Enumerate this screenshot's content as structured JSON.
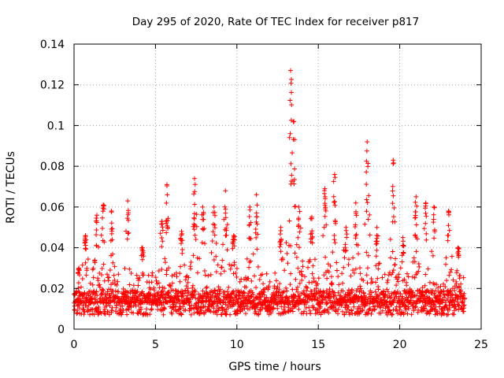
{
  "chart_data": {
    "type": "scatter",
    "title": "Day 295 of 2020, Rate Of TEC Index for receiver p817",
    "xlabel": "GPS time / hours",
    "ylabel": "ROTI / TECUs",
    "xlim": [
      0,
      25
    ],
    "ylim": [
      0,
      0.14
    ],
    "xticks": [
      0,
      5,
      10,
      15,
      20,
      25
    ],
    "xtick_labels": [
      "0",
      "5",
      "10",
      "15",
      "20",
      "25"
    ],
    "yticks": [
      0,
      0.02,
      0.04,
      0.06,
      0.08,
      0.1,
      0.12,
      0.14
    ],
    "ytick_labels": [
      "0",
      "0.02",
      "0.04",
      "0.06",
      "0.08",
      "0.1",
      "0.12",
      "0.14"
    ],
    "grid": true,
    "marker": "+",
    "series_color": "#ff0000",
    "baseline": {
      "x_range": [
        0,
        24
      ],
      "typical_y": 0.013,
      "min_y": 0.003
    },
    "peak_clusters": [
      {
        "x": 0.3,
        "max_y": 0.03
      },
      {
        "x": 0.7,
        "max_y": 0.046
      },
      {
        "x": 1.4,
        "max_y": 0.056
      },
      {
        "x": 1.8,
        "max_y": 0.061
      },
      {
        "x": 2.3,
        "max_y": 0.058
      },
      {
        "x": 3.3,
        "max_y": 0.063
      },
      {
        "x": 4.2,
        "max_y": 0.04
      },
      {
        "x": 5.4,
        "max_y": 0.053
      },
      {
        "x": 5.7,
        "max_y": 0.071
      },
      {
        "x": 6.6,
        "max_y": 0.048
      },
      {
        "x": 7.4,
        "max_y": 0.074
      },
      {
        "x": 7.9,
        "max_y": 0.06
      },
      {
        "x": 8.6,
        "max_y": 0.06
      },
      {
        "x": 9.3,
        "max_y": 0.068
      },
      {
        "x": 9.8,
        "max_y": 0.046
      },
      {
        "x": 10.8,
        "max_y": 0.06
      },
      {
        "x": 11.2,
        "max_y": 0.066
      },
      {
        "x": 12.7,
        "max_y": 0.05
      },
      {
        "x": 13.3,
        "max_y": 0.127
      },
      {
        "x": 13.5,
        "max_y": 0.102
      },
      {
        "x": 13.8,
        "max_y": 0.06
      },
      {
        "x": 14.6,
        "max_y": 0.055
      },
      {
        "x": 15.4,
        "max_y": 0.069
      },
      {
        "x": 16.0,
        "max_y": 0.076
      },
      {
        "x": 16.7,
        "max_y": 0.05
      },
      {
        "x": 17.3,
        "max_y": 0.062
      },
      {
        "x": 18.0,
        "max_y": 0.092
      },
      {
        "x": 18.6,
        "max_y": 0.05
      },
      {
        "x": 19.6,
        "max_y": 0.083
      },
      {
        "x": 20.2,
        "max_y": 0.045
      },
      {
        "x": 21.0,
        "max_y": 0.065
      },
      {
        "x": 21.6,
        "max_y": 0.062
      },
      {
        "x": 22.1,
        "max_y": 0.06
      },
      {
        "x": 23.0,
        "max_y": 0.058
      },
      {
        "x": 23.6,
        "max_y": 0.04
      }
    ]
  }
}
